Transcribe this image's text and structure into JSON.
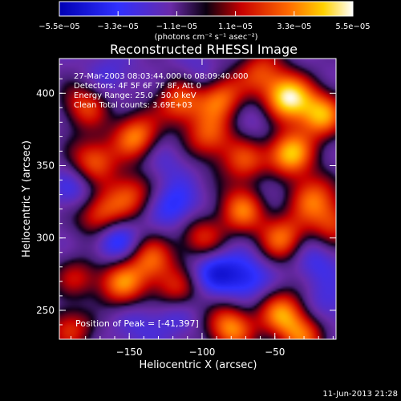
{
  "chart_data": {
    "type": "heatmap",
    "title": "Reconstructed RHESSI Image",
    "xlabel": "Heliocentric X (arcsec)",
    "ylabel": "Heliocentric Y (arcsec)",
    "xlim": [
      -198,
      -8
    ],
    "ylim": [
      230,
      424
    ],
    "x_ticks": [
      -150,
      -100,
      -50
    ],
    "y_ticks": [
      250,
      300,
      350,
      400
    ],
    "x_tick_labels": [
      "−150",
      "−100",
      "−50"
    ],
    "y_tick_labels": [
      "250",
      "300",
      "350",
      "400"
    ],
    "colorbar": {
      "range": [
        -5.5e-05,
        5.5e-05
      ],
      "tick_values": [
        -5.5e-05,
        -3.3e-05,
        -1.1e-05,
        1.1e-05,
        3.3e-05,
        5.5e-05
      ],
      "tick_labels": [
        "−5.5e−05",
        "−3.3e−05",
        "−1.1e−05",
        "1.1e−05",
        "3.3e−05",
        "5.5e−05"
      ],
      "unit_label": "(photons cm⁻² s⁻¹ asec⁻²)"
    },
    "annotations": [
      "27-Mar-2003 08:03:44.000 to 08:09:40.000",
      "Detectors: 4F 5F 6F 7F 8F, Att 0",
      "Energy Range: 25.0 - 50.0 keV",
      "Clean     Total counts: 3.69E+03"
    ],
    "peak_label": "Position of Peak = [-41,397]",
    "peak": [
      -41,
      397
    ],
    "blobs": [
      {
        "x": -41,
        "y": 397,
        "v": 5.5e-05
      },
      {
        "x": -40,
        "y": 358,
        "v": 4.8e-05
      },
      {
        "x": -18,
        "y": 385,
        "v": 4.2e-05
      },
      {
        "x": -88,
        "y": 398,
        "v": 3.6e-05
      },
      {
        "x": -115,
        "y": 394,
        "v": 3.2e-05
      },
      {
        "x": -145,
        "y": 370,
        "v": 3.8e-05
      },
      {
        "x": -175,
        "y": 353,
        "v": 3.3e-05
      },
      {
        "x": -180,
        "y": 392,
        "v": 2.6e-05
      },
      {
        "x": -170,
        "y": 315,
        "v": 3.5e-05
      },
      {
        "x": -150,
        "y": 330,
        "v": 2.6e-05
      },
      {
        "x": -95,
        "y": 370,
        "v": 2.8e-05
      },
      {
        "x": -70,
        "y": 352,
        "v": 2.7e-05
      },
      {
        "x": -72,
        "y": 320,
        "v": 3.4e-05
      },
      {
        "x": -45,
        "y": 300,
        "v": 3.3e-05
      },
      {
        "x": -25,
        "y": 328,
        "v": 3e-05
      },
      {
        "x": -10,
        "y": 310,
        "v": 2.4e-05
      },
      {
        "x": -135,
        "y": 285,
        "v": 2.9e-05
      },
      {
        "x": -100,
        "y": 300,
        "v": 2.4e-05
      },
      {
        "x": -155,
        "y": 268,
        "v": 3.5e-05
      },
      {
        "x": -118,
        "y": 262,
        "v": 2.6e-05
      },
      {
        "x": -80,
        "y": 238,
        "v": 4e-05
      },
      {
        "x": -45,
        "y": 248,
        "v": 3.6e-05
      },
      {
        "x": -190,
        "y": 238,
        "v": 2.4e-05
      },
      {
        "x": -30,
        "y": 232,
        "v": 2.8e-05
      },
      {
        "x": -185,
        "y": 270,
        "v": 2.2e-05
      },
      {
        "x": -60,
        "y": 415,
        "v": 2.3e-05
      },
      {
        "x": -160,
        "y": 300,
        "v": -4.8e-05
      },
      {
        "x": -118,
        "y": 322,
        "v": -4e-05
      },
      {
        "x": -92,
        "y": 278,
        "v": -4.4e-05
      },
      {
        "x": -120,
        "y": 250,
        "v": -3.6e-05
      },
      {
        "x": -70,
        "y": 272,
        "v": -4.2e-05
      },
      {
        "x": -22,
        "y": 285,
        "v": -3.2e-05
      },
      {
        "x": -15,
        "y": 252,
        "v": -3e-05
      },
      {
        "x": -100,
        "y": 410,
        "v": -3.1e-05
      },
      {
        "x": -165,
        "y": 410,
        "v": -2.8e-05
      },
      {
        "x": -185,
        "y": 335,
        "v": -3.4e-05
      },
      {
        "x": -128,
        "y": 355,
        "v": -2.6e-05
      },
      {
        "x": -55,
        "y": 338,
        "v": -2.7e-05
      },
      {
        "x": -182,
        "y": 258,
        "v": -2.8e-05
      },
      {
        "x": -60,
        "y": 380,
        "v": -2.2e-05
      },
      {
        "x": -145,
        "y": 240,
        "v": -2.5e-05
      }
    ]
  },
  "footer": {
    "date": "11-Jun-2013 21:28"
  }
}
